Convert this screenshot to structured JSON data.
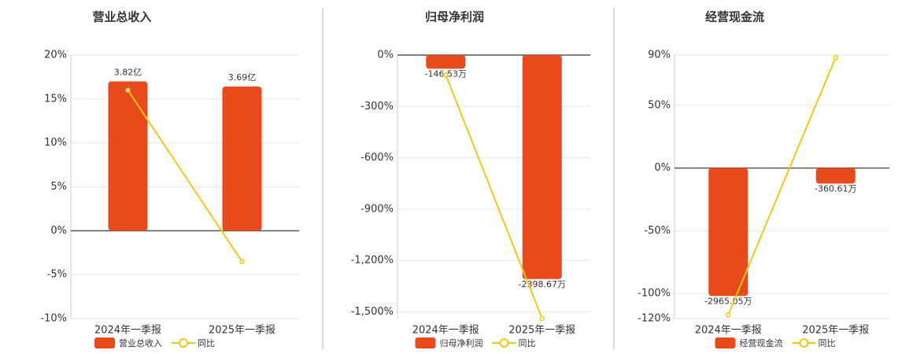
{
  "chart_data": [
    {
      "type": "combo",
      "title": "营业总收入",
      "categories": [
        "2024年一季报",
        "2025年一季报"
      ],
      "series": [
        {
          "name": "营业总收入",
          "type": "bar",
          "color": "#e84a1b",
          "values": [
            3.82,
            3.69
          ],
          "value_labels": [
            "3.82亿",
            "3.69亿"
          ]
        },
        {
          "name": "同比",
          "type": "line",
          "color": "#f2c811",
          "values": [
            16,
            -3.5
          ]
        }
      ],
      "ylim": [
        -10,
        20
      ],
      "yticks": [
        {
          "value": 20,
          "label": "20%"
        },
        {
          "value": 15,
          "label": "15%"
        },
        {
          "value": 10,
          "label": "10%"
        },
        {
          "value": 5,
          "label": "5%"
        },
        {
          "value": 0,
          "label": "0%"
        },
        {
          "value": -5,
          "label": "-5%"
        },
        {
          "value": -10,
          "label": "-10%"
        }
      ],
      "grid": true
    },
    {
      "type": "combo",
      "title": "归母净利润",
      "categories": [
        "2024年一季报",
        "2025年一季报"
      ],
      "series": [
        {
          "name": "归母净利润",
          "type": "bar",
          "color": "#e84a1b",
          "values": [
            -146.53,
            -2398.67
          ],
          "value_labels": [
            "-146.53万",
            "-2398.67万"
          ]
        },
        {
          "name": "同比",
          "type": "line",
          "color": "#f2c811",
          "values": [
            -115,
            -1540
          ]
        }
      ],
      "ylim": [
        -1540,
        0
      ],
      "yticks": [
        {
          "value": 0,
          "label": "0%"
        },
        {
          "value": -300,
          "label": "-300%"
        },
        {
          "value": -600,
          "label": "-600%"
        },
        {
          "value": -900,
          "label": "-900%"
        },
        {
          "value": -1200,
          "label": "-1,200%"
        },
        {
          "value": -1500,
          "label": "-1,500%"
        }
      ],
      "grid": true
    },
    {
      "type": "combo",
      "title": "经营现金流",
      "categories": [
        "2024年一季报",
        "2025年一季报"
      ],
      "series": [
        {
          "name": "经营现金流",
          "type": "bar",
          "color": "#e84a1b",
          "values": [
            -2965.05,
            -360.61
          ],
          "value_labels": [
            "-2965.05万",
            "-360.61万"
          ]
        },
        {
          "name": "同比",
          "type": "line",
          "color": "#f2c811",
          "values": [
            -117,
            88
          ]
        }
      ],
      "ylim": [
        -120,
        90
      ],
      "yticks": [
        {
          "value": 90,
          "label": "90%"
        },
        {
          "value": 50,
          "label": "50%"
        },
        {
          "value": 0,
          "label": "0%"
        },
        {
          "value": -50,
          "label": "-50%"
        },
        {
          "value": -100,
          "label": "-100%"
        },
        {
          "value": -120,
          "label": "-120%"
        }
      ],
      "grid": true
    }
  ]
}
